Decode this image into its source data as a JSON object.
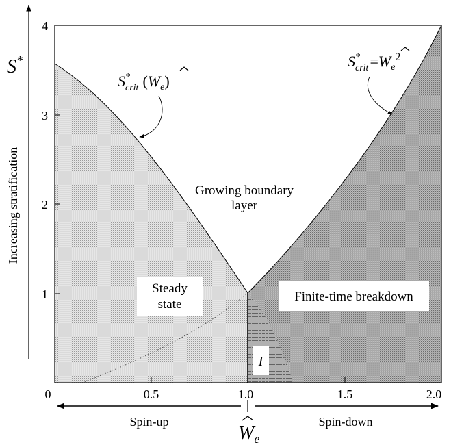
{
  "diagram": {
    "x_axis": {
      "ticks": [
        "0",
        "0.5",
        "1.0",
        "1.5",
        "2.0"
      ],
      "symbol_base": "W",
      "symbol_sub": "e",
      "range": [
        0,
        2
      ]
    },
    "y_axis": {
      "ticks": [
        "1",
        "2",
        "3",
        "4"
      ],
      "symbol_base": "S",
      "symbol_sup": "*",
      "range": [
        0,
        4
      ],
      "arrow_label": "Increasing stratification"
    },
    "regions": {
      "steady": [
        "Steady",
        "state"
      ],
      "growing": [
        "Growing boundary",
        "layer"
      ],
      "breakdown": "Finite-time breakdown",
      "region_I": "I"
    },
    "bottom_arrows": {
      "left": "Spin-up",
      "right": "Spin-down"
    },
    "curves": {
      "left_label": {
        "base": "S",
        "sup": "*",
        "sub": "crit",
        "arg_open": "(",
        "arg_base": "W",
        "arg_sub": "e",
        "arg_close": ")"
      },
      "right_label": {
        "base": "S",
        "sup": "*",
        "sub": "crit",
        "eq": "=",
        "rhs_base": "W",
        "rhs_sub": "e",
        "rhs_sup": "2"
      },
      "left_curve_S_at_0": 3.6,
      "meet_point": [
        1.0,
        1.0
      ]
    },
    "colors": {
      "light_shade": "#d8d8d8",
      "dark_shade": "#a9a9a9",
      "line": "#000000"
    }
  }
}
